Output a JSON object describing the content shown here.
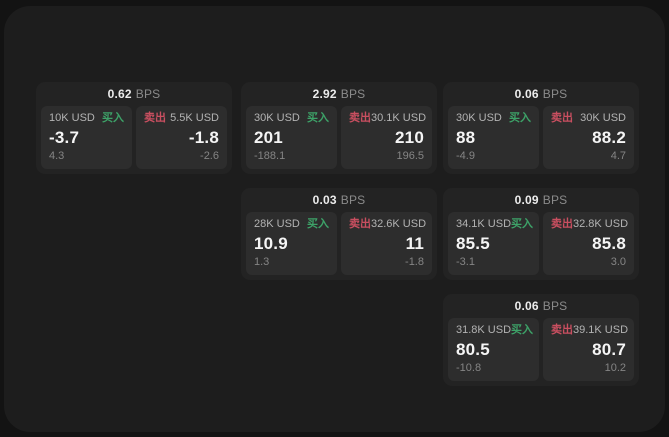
{
  "page": {
    "background": "#131313",
    "surface_background": "#1d1d1d",
    "card_background": "#232323",
    "pane_background": "#2d2d2d"
  },
  "labels": {
    "buy": "买入",
    "sell": "卖出",
    "unit": "BPS"
  },
  "colors": {
    "buy": "#3da268",
    "sell": "#c94f60"
  },
  "cards": [
    {
      "bps": "0.62",
      "buy": {
        "notional": "10K USD",
        "price": "-3.7",
        "delta": "4.3"
      },
      "sell": {
        "notional": "5.5K USD",
        "price": "-1.8",
        "delta": "-2.6"
      }
    },
    {
      "bps": "2.92",
      "buy": {
        "notional": "30K USD",
        "price": "201",
        "delta": "-188.1"
      },
      "sell": {
        "notional": "30.1K USD",
        "price": "210",
        "delta": "196.5"
      }
    },
    {
      "bps": "0.06",
      "buy": {
        "notional": "30K USD",
        "price": "88",
        "delta": "-4.9"
      },
      "sell": {
        "notional": "30K USD",
        "price": "88.2",
        "delta": "4.7"
      }
    },
    {
      "bps": "0.03",
      "buy": {
        "notional": "28K USD",
        "price": "10.9",
        "delta": "1.3"
      },
      "sell": {
        "notional": "32.6K USD",
        "price": "11",
        "delta": "-1.8"
      }
    },
    {
      "bps": "0.09",
      "buy": {
        "notional": "34.1K USD",
        "price": "85.5",
        "delta": "-3.1"
      },
      "sell": {
        "notional": "32.8K USD",
        "price": "85.8",
        "delta": "3.0"
      }
    },
    {
      "bps": "0.06",
      "buy": {
        "notional": "31.8K USD",
        "price": "80.5",
        "delta": "-10.8"
      },
      "sell": {
        "notional": "39.1K USD",
        "price": "80.7",
        "delta": "10.2"
      }
    }
  ]
}
